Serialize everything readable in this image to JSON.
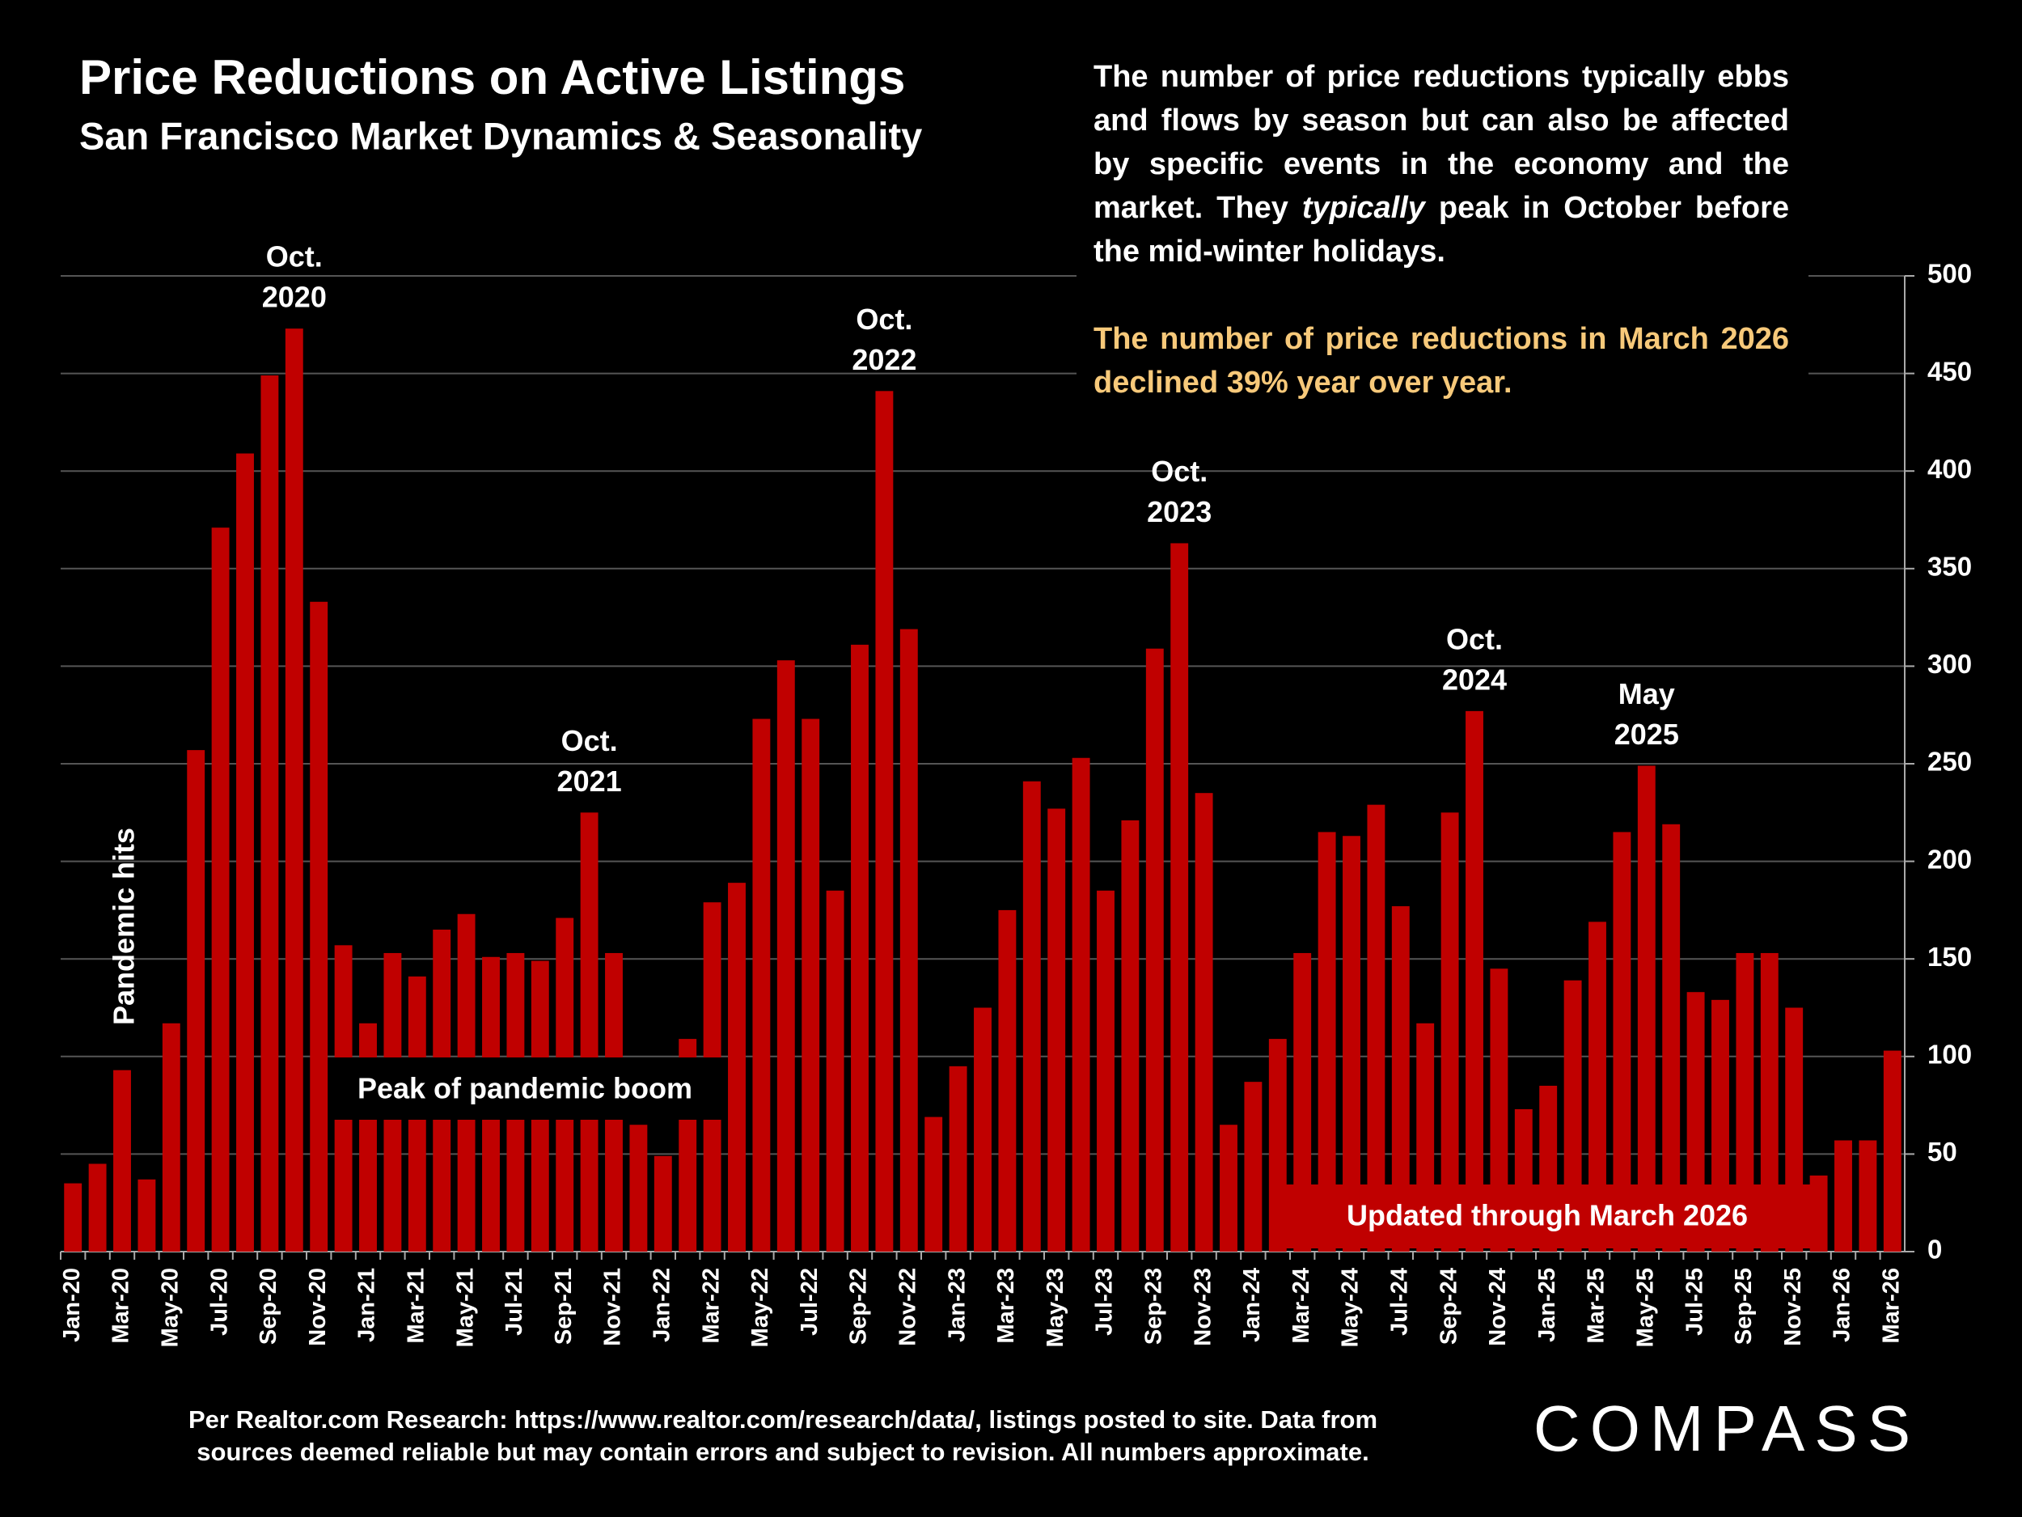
{
  "chart_data": {
    "type": "bar",
    "title": "Price Reductions on Active Listings",
    "subtitle": "San Francisco Market Dynamics & Seasonality",
    "description": [
      "The number of price reductions typically ebbs and flows by season but can also be affected by specific events in the economy and the market. They ",
      "typically",
      " peak in October before the mid-winter holidays."
    ],
    "highlight": "The number of price reductions in March 2026 declined 39% year over year.",
    "annotations": [
      [
        "Oct.",
        "2020"
      ],
      [
        "Oct.",
        "2021"
      ],
      [
        "Oct.",
        "2022"
      ],
      [
        "Oct.",
        "2023"
      ],
      [
        "Oct.",
        "2024"
      ],
      [
        "May",
        "2025"
      ]
    ],
    "notes": [
      "Pandemic hits",
      "Peak of pandemic boom",
      "Updated through March 2026"
    ],
    "source": [
      "Per Realtor.com Research:  https://www.realtor.com/research/data/, listings posted to site. Data from",
      "sources deemed reliable but may contain errors and subject to revision. All numbers approximate."
    ],
    "logo": "COMPASS",
    "categories": [
      "Jan-20",
      null,
      "Mar-20",
      null,
      "May-20",
      null,
      "Jul-20",
      null,
      "Sep-20",
      null,
      "Nov-20",
      null,
      "Jan-21",
      null,
      "Mar-21",
      null,
      "May-21",
      null,
      "Jul-21",
      null,
      "Sep-21",
      null,
      "Nov-21",
      null,
      "Jan-22",
      null,
      "Mar-22",
      null,
      "May-22",
      null,
      "Jul-22",
      null,
      "Sep-22",
      null,
      "Nov-22",
      null,
      "Jan-23",
      null,
      "Mar-23",
      null,
      "May-23",
      null,
      "Jul-23",
      null,
      "Sep-23",
      null,
      "Nov-23",
      null,
      "Jan-24",
      null,
      "Mar-24",
      null,
      "May-24",
      null,
      "Jul-24",
      null,
      "Sep-24",
      null,
      "Nov-24",
      null,
      "Jan-25",
      null,
      "Mar-25",
      null,
      "May-25",
      null,
      "Jul-25",
      null,
      "Sep-25",
      null,
      "Nov-25",
      null,
      "Jan-26",
      null,
      "Mar-26"
    ],
    "values": [
      35,
      45,
      93,
      37,
      117,
      257,
      371,
      409,
      449,
      473,
      333,
      157,
      117,
      153,
      141,
      165,
      173,
      151,
      153,
      149,
      171,
      225,
      153,
      65,
      49,
      109,
      179,
      189,
      273,
      303,
      273,
      185,
      311,
      441,
      319,
      69,
      95,
      125,
      175,
      241,
      227,
      253,
      185,
      221,
      309,
      363,
      235,
      65,
      87,
      109,
      153,
      215,
      213,
      229,
      177,
      117,
      225,
      277,
      145,
      73,
      85,
      139,
      169,
      215,
      249,
      219,
      133,
      129,
      153,
      153,
      125,
      39,
      57,
      57,
      103
    ],
    "color": "#c00000",
    "ylim": [
      0,
      500
    ],
    "yticks": [
      0,
      50,
      100,
      150,
      200,
      250,
      300,
      350,
      400,
      450,
      500
    ],
    "grid": true
  }
}
